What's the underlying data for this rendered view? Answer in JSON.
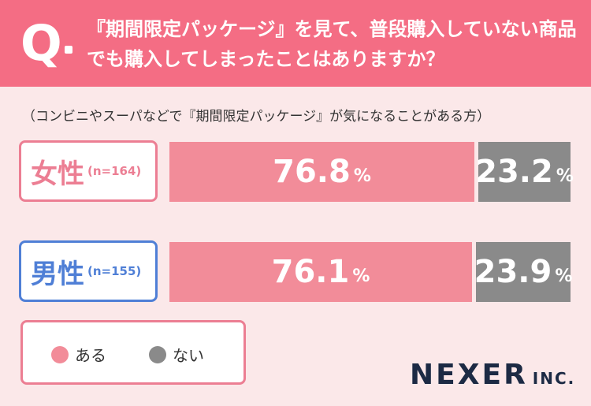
{
  "header": {
    "q_mark": "Q",
    "question": "『期間限定パッケージ』を見て、普段購入していない商品でも購入してしまったことはありますか？"
  },
  "subtitle": "（コンビニやスーパなどで『期間限定パッケージ』が気になることがある方）",
  "unit": "%",
  "colors": {
    "header": "#f46d84",
    "aru": "#f28c99",
    "nai": "#8a8a8a",
    "female": "#ec7e93",
    "male": "#4f7fd6"
  },
  "chart_data": {
    "type": "bar",
    "orientation": "horizontal-stacked",
    "categories": [
      "女性",
      "男性"
    ],
    "category_n": [
      "(n=164)",
      "(n=155)"
    ],
    "series": [
      {
        "name": "ある",
        "values": [
          76.8,
          76.1
        ]
      },
      {
        "name": "ない",
        "values": [
          23.2,
          23.9
        ]
      }
    ],
    "xlim": [
      0,
      100
    ],
    "legend": "bottom-left",
    "grid": false
  },
  "legend": {
    "items": [
      "ある",
      "ない"
    ]
  },
  "logo": {
    "main": "NEXER",
    "sub": "INC."
  }
}
